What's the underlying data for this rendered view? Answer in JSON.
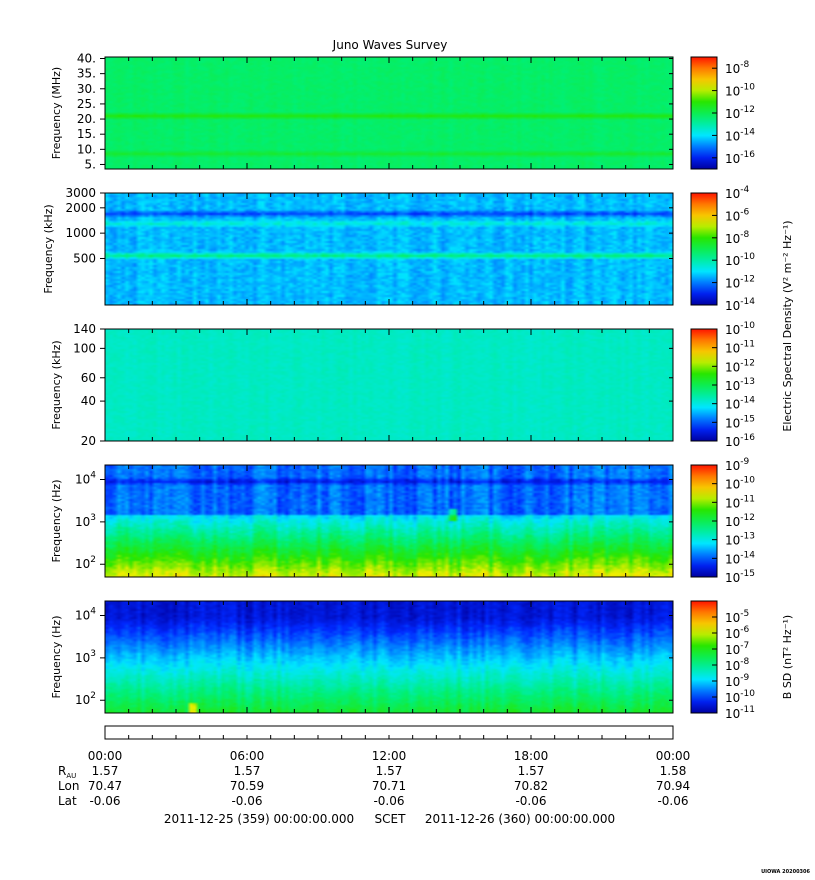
{
  "title": "Juno Waves Survey",
  "footer": {
    "start": "2011-12-25 (359) 00:00:00.000",
    "mid": "SCET",
    "end": "2011-12-26 (360) 00:00:00.000",
    "stamp": "UIOWA 20200306"
  },
  "ephemeris": {
    "time_ticks": [
      "00:00",
      "06:00",
      "12:00",
      "18:00",
      "00:00"
    ],
    "rows": [
      {
        "label": "R",
        "sub": "AU",
        "values": [
          "1.57",
          "1.57",
          "1.57",
          "1.57",
          "1.58"
        ]
      },
      {
        "label": "Lon",
        "sub": "",
        "values": [
          "70.47",
          "70.59",
          "70.71",
          "70.82",
          "70.94"
        ]
      },
      {
        "label": "Lat",
        "sub": "",
        "values": [
          "-0.06",
          "-0.06",
          "-0.06",
          "-0.06",
          "-0.06"
        ]
      }
    ]
  },
  "colorbar_labels": {
    "electric": "Electric Spectral Density (V² m⁻² Hz⁻¹)",
    "magnetic": "B SD (nT² Hz⁻¹)"
  },
  "chart_data": [
    {
      "type": "heatmap",
      "name": "band-mhz",
      "ylabel": "Frequency (MHz)",
      "yscale": "linear",
      "ylim": [
        3.5,
        40.5
      ],
      "yticks": [
        {
          "v": 40,
          "t": "40."
        },
        {
          "v": 35,
          "t": "35."
        },
        {
          "v": 30,
          "t": "30."
        },
        {
          "v": 25,
          "t": "25."
        },
        {
          "v": 20,
          "t": "20."
        },
        {
          "v": 15,
          "t": "15."
        },
        {
          "v": 10,
          "t": "10."
        },
        {
          "v": 5,
          "t": "5."
        }
      ],
      "colorbar": {
        "log_range": [
          -17,
          -7
        ],
        "ticks": [
          -8,
          -10,
          -12,
          -14,
          -16
        ]
      },
      "texture": {
        "level": -12.3,
        "noise": 0.25,
        "horizontal_bands": [
          {
            "y": 21,
            "delta": 1.1
          },
          {
            "y": 8.5,
            "delta": 0.7
          }
        ],
        "low_boost": [],
        "spikes": []
      }
    },
    {
      "type": "heatmap",
      "name": "band-khz-high",
      "ylabel": "Frequency (kHz)",
      "yscale": "log",
      "ylim": [
        140,
        3000
      ],
      "yticks": [
        {
          "v": 3000,
          "t": "3000"
        },
        {
          "v": 2000,
          "t": "2000"
        },
        {
          "v": 1000,
          "t": "1000"
        },
        {
          "v": 500,
          "t": "500"
        }
      ],
      "colorbar": {
        "log_range": [
          -14,
          -4
        ],
        "ticks": [
          -4,
          -6,
          -8,
          -10,
          -12,
          -14
        ]
      },
      "texture": {
        "level": -11.4,
        "noise": 0.6,
        "horizontal_bands": [
          {
            "y": 1700,
            "delta": -1.2
          },
          {
            "y": 1300,
            "delta": 0.9
          },
          {
            "y": 540,
            "delta": 1.9
          }
        ],
        "low_boost": [],
        "spikes": []
      }
    },
    {
      "type": "heatmap",
      "name": "band-khz-low",
      "ylabel": "Frequency (kHz)",
      "yscale": "log",
      "ylim": [
        20,
        140
      ],
      "yticks": [
        {
          "v": 140,
          "t": "140"
        },
        {
          "v": 100,
          "t": "100"
        },
        {
          "v": 60,
          "t": "60"
        },
        {
          "v": 40,
          "t": "40"
        },
        {
          "v": 20,
          "t": "20"
        }
      ],
      "colorbar": {
        "log_range": [
          -16,
          -10
        ],
        "ticks": [
          -10,
          -11,
          -12,
          -13,
          -14,
          -15,
          -16
        ]
      },
      "texture": {
        "level": -13.8,
        "noise": 0.15,
        "horizontal_bands": [],
        "low_boost": [],
        "spikes": []
      }
    },
    {
      "type": "heatmap",
      "name": "band-hz-electric",
      "ylabel": "Frequency (Hz)",
      "yscale": "log",
      "ylim": [
        50,
        22000
      ],
      "yticks": [
        {
          "v": 10000,
          "t": "10^4"
        },
        {
          "v": 1000,
          "t": "10^3"
        },
        {
          "v": 100,
          "t": "10^2"
        }
      ],
      "colorbar": {
        "log_range": [
          -15,
          -9
        ],
        "ticks": [
          -9,
          -10,
          -11,
          -12,
          -13,
          -14,
          -15
        ]
      },
      "texture": {
        "level": -13.9,
        "noise": 0.35,
        "horizontal_bands": [
          {
            "y": 9000,
            "delta": -0.6
          }
        ],
        "low_boost": [
          {
            "from": 1500,
            "to": 50,
            "start": 0.6,
            "end": 3.3
          }
        ],
        "spikes": [
          {
            "t": 0.61,
            "y": 1400,
            "delta": 1.5
          }
        ]
      }
    },
    {
      "type": "heatmap",
      "name": "band-hz-magnetic",
      "ylabel": "Frequency (Hz)",
      "yscale": "log",
      "ylim": [
        50,
        22000
      ],
      "yticks": [
        {
          "v": 10000,
          "t": "10^4"
        },
        {
          "v": 1000,
          "t": "10^3"
        },
        {
          "v": 100,
          "t": "10^2"
        }
      ],
      "colorbar": {
        "log_range": [
          -11,
          -4
        ],
        "ticks": [
          -5,
          -6,
          -7,
          -8,
          -9,
          -10,
          -11
        ]
      },
      "texture": {
        "level": -10.5,
        "noise": 0.3,
        "horizontal_bands": [],
        "low_boost": [
          {
            "from": 9000,
            "to": 50,
            "start": 0,
            "end": 3.3
          }
        ],
        "spikes": [
          {
            "t": 0.15,
            "y": 60,
            "delta": 1.4
          }
        ]
      }
    }
  ]
}
